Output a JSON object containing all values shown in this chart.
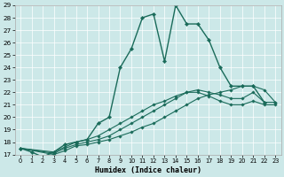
{
  "xlabel": "Humidex (Indice chaleur)",
  "bg_color": "#cce8e8",
  "line_color": "#1a6b5a",
  "xlim": [
    -0.5,
    23.5
  ],
  "ylim": [
    17,
    29
  ],
  "yticks": [
    17,
    18,
    19,
    20,
    21,
    22,
    23,
    24,
    25,
    26,
    27,
    28,
    29
  ],
  "xticks": [
    0,
    1,
    2,
    3,
    4,
    5,
    6,
    7,
    8,
    9,
    10,
    11,
    12,
    13,
    14,
    15,
    16,
    17,
    18,
    19,
    20,
    21,
    22,
    23
  ],
  "lines": [
    {
      "x": [
        0,
        1,
        2,
        3,
        4,
        5,
        6,
        7,
        8,
        9,
        10,
        11,
        12,
        13,
        14,
        15,
        16,
        17,
        18,
        19,
        20,
        21,
        22
      ],
      "y": [
        17.5,
        17.2,
        16.8,
        17.2,
        17.8,
        18.0,
        18.2,
        19.5,
        20.0,
        24.0,
        25.5,
        28.0,
        28.3,
        24.5,
        29.0,
        27.5,
        27.5,
        26.2,
        24.0,
        22.5,
        22.5,
        22.5,
        21.2
      ]
    },
    {
      "x": [
        0,
        3,
        4,
        5,
        6,
        7,
        8,
        9,
        10,
        11,
        12,
        13,
        14,
        15,
        16,
        17,
        18,
        19,
        20,
        21,
        22,
        23
      ],
      "y": [
        17.5,
        17.0,
        17.3,
        17.7,
        17.8,
        18.0,
        18.2,
        18.5,
        18.8,
        19.2,
        19.5,
        20.0,
        20.5,
        21.0,
        21.5,
        21.8,
        22.0,
        22.2,
        22.5,
        22.5,
        22.2,
        21.2
      ]
    },
    {
      "x": [
        0,
        3,
        4,
        5,
        6,
        7,
        8,
        9,
        10,
        11,
        12,
        13,
        14,
        15,
        16,
        17,
        18,
        19,
        20,
        21,
        22,
        23
      ],
      "y": [
        17.5,
        17.1,
        17.5,
        17.8,
        18.0,
        18.2,
        18.5,
        19.0,
        19.5,
        20.0,
        20.5,
        21.0,
        21.5,
        22.0,
        22.2,
        22.0,
        21.8,
        21.5,
        21.5,
        22.0,
        21.2,
        21.2
      ]
    },
    {
      "x": [
        0,
        3,
        4,
        5,
        6,
        7,
        8,
        9,
        10,
        11,
        12,
        13,
        14,
        15,
        16,
        17,
        18,
        19,
        20,
        21,
        22,
        23
      ],
      "y": [
        17.5,
        17.2,
        17.6,
        18.0,
        18.2,
        18.5,
        19.0,
        19.5,
        20.0,
        20.5,
        21.0,
        21.3,
        21.7,
        22.0,
        22.0,
        21.7,
        21.3,
        21.0,
        21.0,
        21.3,
        21.0,
        21.0
      ]
    }
  ]
}
